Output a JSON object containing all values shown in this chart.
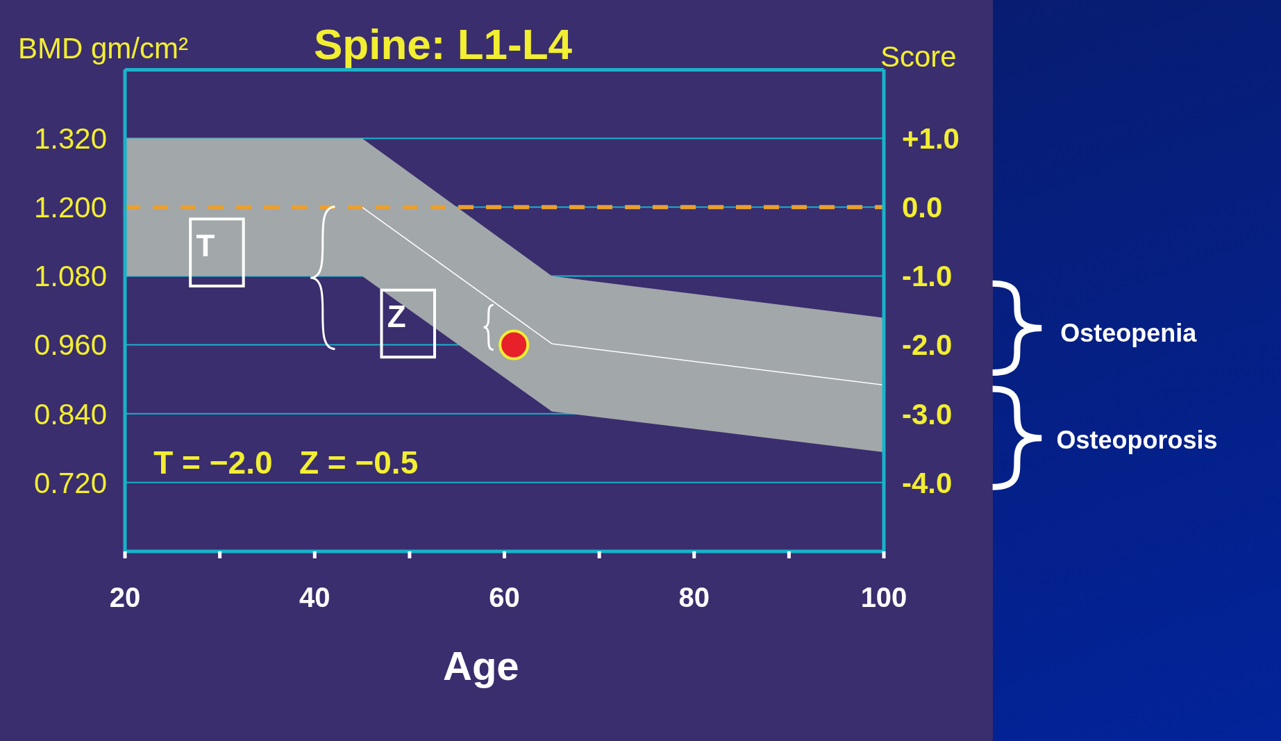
{
  "chart_data": {
    "type": "line",
    "title": "Spine: L1-L4",
    "xlabel": "Age",
    "ylabel": "BMD gm/cm²",
    "y2label": "Score",
    "xlim": [
      20,
      100
    ],
    "xticks": [
      20,
      {
        "value": 30,
        "label": null
      },
      40,
      {
        "value": 50,
        "label": null
      },
      60,
      {
        "value": 70,
        "label": null
      },
      80,
      {
        "value": 90,
        "label": null
      },
      100
    ],
    "ylim": [
      0.6,
      1.44
    ],
    "yticks": [
      {
        "value": 0.72,
        "label": "0.720"
      },
      {
        "value": 0.84,
        "label": "0.840"
      },
      {
        "value": 0.96,
        "label": "0.960"
      },
      {
        "value": 1.08,
        "label": "1.080"
      },
      {
        "value": 1.2,
        "label": "1.200"
      },
      {
        "value": 1.32,
        "label": "1.320"
      }
    ],
    "y2lim": [
      -5,
      2
    ],
    "y2ticks": [
      {
        "value": -4,
        "label": "-4.0"
      },
      {
        "value": -3,
        "label": "-3.0"
      },
      {
        "value": -2,
        "label": "-2.0"
      },
      {
        "value": -1,
        "label": "-1.0"
      },
      {
        "value": 0,
        "label": "0.0"
      },
      {
        "value": 1,
        "label": "+1.0"
      }
    ],
    "grid": "y",
    "ref_lines": [
      {
        "axis": "y",
        "value": 1.2,
        "color": "#e8a030",
        "line_style": "dashed"
      }
    ],
    "series": [
      {
        "type": "line",
        "color": "#ffffff",
        "x": [
          20,
          45,
          65,
          100
        ],
        "values": [
          null,
          1.2,
          0.962,
          0.89
        ],
        "lower": [
          1.08,
          1.08,
          0.844,
          0.773
        ],
        "upper": [
          1.32,
          1.32,
          1.08,
          1.007
        ]
      },
      {
        "type": "scatter",
        "color": "#e8202a",
        "x": [
          61
        ],
        "values": [
          0.96
        ],
        "marker": "circle"
      }
    ],
    "annotations": [
      "T",
      "Z",
      "T = −2.0   Z = −0.5",
      "Osteopenia",
      "Osteoporosis"
    ]
  }
}
